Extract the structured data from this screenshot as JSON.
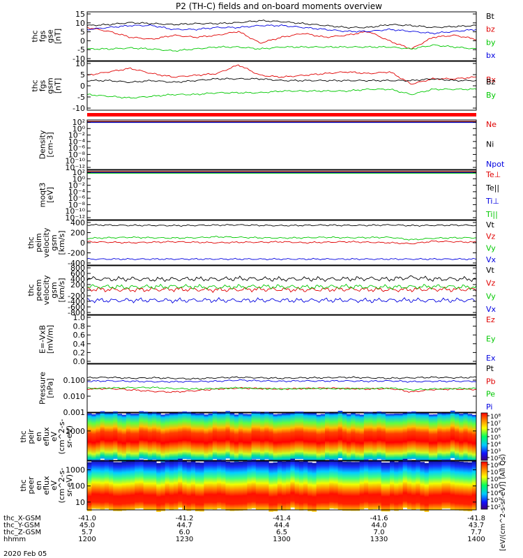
{
  "title": "P2 (TH-C) fields and on-board moments overview",
  "colors": {
    "black": "#000000",
    "red": "#e00000",
    "green": "#00c800",
    "blue": "#0000e0",
    "orange": "#ff9900"
  },
  "chart_data": [
    {
      "type": "line",
      "ylabel": [
        "thc",
        "fgs",
        "gse",
        "[nT]"
      ],
      "yticks": [
        "15",
        "10",
        "5",
        "0",
        "-5",
        "-10"
      ],
      "ylim": [
        -10,
        15
      ],
      "series": [
        {
          "name": "Bt",
          "color": "black",
          "values": [
            8,
            8.5,
            9.5,
            9,
            8.5,
            9,
            9,
            9.5,
            10.5,
            10,
            9,
            8,
            7,
            7,
            8.5,
            8,
            7,
            7.5,
            8
          ]
        },
        {
          "name": "bz",
          "color": "red",
          "values": [
            7,
            5,
            2,
            1,
            3,
            2,
            3,
            5,
            -1,
            2,
            4,
            2,
            3,
            5,
            0,
            -4,
            2,
            3,
            1
          ]
        },
        {
          "name": "by",
          "color": "green",
          "values": [
            -4,
            -4,
            -3.5,
            -4,
            -5,
            -4,
            -3,
            -3,
            -4,
            -3,
            -3,
            -3,
            -3,
            -3,
            -3,
            -4,
            -2,
            -3,
            -4
          ]
        },
        {
          "name": "bx",
          "color": "blue",
          "values": [
            6,
            7,
            8,
            8,
            6,
            6,
            7,
            7,
            8,
            8,
            7,
            6,
            5,
            5,
            6,
            5,
            4,
            5,
            6
          ]
        }
      ]
    },
    {
      "type": "line",
      "ylabel": [
        "thc",
        "fgs",
        "gsm",
        "[nT]"
      ],
      "yticks": [
        "10",
        "5",
        "0",
        "-5",
        "-10"
      ],
      "ylim": [
        -13,
        15
      ],
      "series": [
        {
          "name": "Bx",
          "color": "red",
          "values": [
            7,
            9,
            11,
            8,
            6,
            7,
            8,
            13,
            7,
            6,
            7,
            8,
            9,
            8,
            9,
            2,
            5,
            5,
            6
          ]
        },
        {
          "name": "Bz",
          "color": "black",
          "values": [
            4,
            4,
            3,
            4,
            3,
            4,
            5,
            5,
            5,
            4,
            4,
            4,
            4,
            4,
            4,
            4,
            5,
            4,
            4
          ]
        },
        {
          "name": "By",
          "color": "green",
          "values": [
            -4,
            -5,
            -6,
            -5,
            -4,
            -4,
            -3,
            -3,
            -3,
            -2,
            -2,
            -2,
            -2,
            -1,
            -1,
            -4,
            -1,
            -1,
            -1
          ]
        }
      ]
    },
    {
      "type": "line",
      "ylabel": [
        "Density",
        "[cm-3]"
      ],
      "yticks": [
        "10²",
        "10⁰",
        "10⁻²",
        "10⁻⁴",
        "10⁻⁶",
        "10⁻⁸",
        "10⁻¹⁰",
        "10⁻¹²"
      ],
      "series": [
        {
          "name": "Ne",
          "color": "red"
        },
        {
          "name": "Ni",
          "color": "black"
        },
        {
          "name": "Npot",
          "color": "blue"
        }
      ]
    },
    {
      "type": "line",
      "ylabel": [
        "moqt3",
        "[eV]"
      ],
      "yticks": [
        "10²",
        "10⁰",
        "10⁻²",
        "10⁻⁴",
        "10⁻⁶",
        "10⁻⁸",
        "10⁻¹⁰",
        "10⁻¹²"
      ],
      "series": [
        {
          "name": "Te⊥",
          "color": "red"
        },
        {
          "name": "Te||",
          "color": "black"
        },
        {
          "name": "Ti⊥",
          "color": "blue"
        },
        {
          "name": "Ti||",
          "color": "green"
        }
      ]
    },
    {
      "type": "line",
      "ylabel": [
        "thc",
        "peim",
        "velocity",
        "gsm",
        "[km/s]"
      ],
      "yticks": [
        "400",
        "200",
        "0",
        "-200",
        "-400"
      ],
      "ylim": [
        -450,
        450
      ],
      "series": [
        {
          "name": "Vt",
          "color": "black",
          "values": [
            360,
            355,
            350,
            350,
            345,
            350,
            355,
            360,
            350,
            345,
            350,
            355,
            350,
            350,
            360,
            345,
            350,
            355,
            350
          ]
        },
        {
          "name": "Vz",
          "color": "red",
          "values": [
            20,
            10,
            0,
            10,
            20,
            10,
            0,
            10,
            10,
            20,
            0,
            10,
            20,
            10,
            0,
            -20,
            30,
            20,
            10
          ]
        },
        {
          "name": "Vy",
          "color": "green",
          "values": [
            90,
            100,
            110,
            100,
            95,
            100,
            120,
            110,
            100,
            95,
            100,
            110,
            100,
            105,
            110,
            60,
            90,
            100,
            100
          ]
        },
        {
          "name": "Vx",
          "color": "blue",
          "values": [
            -330,
            -330,
            -330,
            -330,
            -330,
            -330,
            -330,
            -330,
            -330,
            -330,
            -330,
            -330,
            -330,
            -330,
            -330,
            -330,
            -330,
            -330,
            -330
          ]
        }
      ]
    },
    {
      "type": "line",
      "ylabel": [
        "thc",
        "peem",
        "velocity",
        "gsm",
        "[km/s]"
      ],
      "yticks": [
        "800",
        "600",
        "400",
        "200",
        "0",
        "-200",
        "-400",
        "-600",
        "-800"
      ],
      "ylim": [
        -800,
        800
      ],
      "series": [
        {
          "name": "Vt",
          "color": "black",
          "values": [
            380,
            360,
            370,
            350,
            360,
            370,
            360,
            380,
            370,
            360,
            370,
            360,
            370,
            380,
            360,
            420,
            360,
            370,
            360
          ]
        },
        {
          "name": "Vz",
          "color": "red",
          "values": [
            30,
            20,
            10,
            20,
            30,
            20,
            10,
            20,
            30,
            20,
            10,
            20,
            30,
            20,
            10,
            20,
            30,
            20,
            30
          ]
        },
        {
          "name": "Vy",
          "color": "green",
          "values": [
            120,
            110,
            100,
            110,
            120,
            110,
            100,
            110,
            120,
            110,
            100,
            110,
            120,
            110,
            100,
            110,
            120,
            110,
            100
          ]
        },
        {
          "name": "Vx",
          "color": "blue",
          "values": [
            -330,
            -340,
            -330,
            -330,
            -340,
            -330,
            -330,
            -340,
            -330,
            -330,
            -340,
            -330,
            -330,
            -340,
            -330,
            -330,
            -340,
            -330,
            -330
          ]
        }
      ]
    },
    {
      "type": "line",
      "ylabel": [
        "E=-VxB",
        "[mV/m]"
      ],
      "yticks": [
        "1.0",
        "0.8",
        "0.6",
        "0.4",
        "0.2",
        "0.0"
      ],
      "ylim": [
        0,
        1
      ],
      "series": [
        {
          "name": "Ez",
          "color": "red"
        },
        {
          "name": "Ey",
          "color": "green"
        },
        {
          "name": "Ex",
          "color": "blue"
        }
      ]
    },
    {
      "type": "line",
      "ylabel": [
        "Pressure",
        "[nPa]"
      ],
      "yticks": [
        "0.100",
        "0.010",
        "0.001"
      ],
      "ylim": [
        0.001,
        1
      ],
      "yscale": "log",
      "series": [
        {
          "name": "Pt",
          "color": "black",
          "values": [
            0.14,
            0.15,
            0.13,
            0.14,
            0.13,
            0.12,
            0.14,
            0.15,
            0.14,
            0.13,
            0.14,
            0.14,
            0.15,
            0.14,
            0.13,
            0.14,
            0.15,
            0.14,
            0.15
          ]
        },
        {
          "name": "Pb",
          "color": "red",
          "values": [
            0.028,
            0.03,
            0.025,
            0.02,
            0.018,
            0.022,
            0.028,
            0.032,
            0.03,
            0.028,
            0.03,
            0.032,
            0.03,
            0.028,
            0.03,
            0.018,
            0.026,
            0.028,
            0.026
          ]
        },
        {
          "name": "Pe",
          "color": "green",
          "values": [
            0.03,
            0.032,
            0.034,
            0.035,
            0.03,
            0.028,
            0.03,
            0.033,
            0.03,
            0.028,
            0.03,
            0.03,
            0.029,
            0.03,
            0.032,
            0.025,
            0.028,
            0.03,
            0.03
          ]
        },
        {
          "name": "Pi",
          "color": "blue",
          "values": [
            0.085,
            0.09,
            0.085,
            0.08,
            0.08,
            0.082,
            0.085,
            0.1,
            0.09,
            0.085,
            0.09,
            0.088,
            0.09,
            0.085,
            0.09,
            0.08,
            0.085,
            0.085,
            0.085
          ]
        }
      ]
    },
    {
      "type": "heatmap",
      "ylabel": [
        "thc",
        "peir",
        "en",
        "eflux",
        "eV",
        "(cm^2-s-",
        "sr-eV)"
      ],
      "yticks": [
        "1000"
      ]
    },
    {
      "type": "heatmap",
      "ylabel": [
        "thc",
        "peer",
        "en",
        "eflux",
        "eV",
        "(cm^2-s-",
        "sr-eV)"
      ],
      "yticks": [
        "1000",
        "100",
        "10"
      ]
    }
  ],
  "colorbar": {
    "label": "[eV/(cm^2-s-sr-eV)] (All Qs)",
    "ticks_top": [
      "10⁸",
      "10⁷",
      "10⁶",
      "10⁵",
      "10⁴",
      "10³",
      "10²"
    ],
    "ticks_bottom": [
      "10⁸",
      "10⁷",
      "10⁶",
      "10⁵",
      "10⁴",
      "10³",
      "10²"
    ]
  },
  "xaxis": {
    "rows": [
      {
        "label": "thc_X-GSM",
        "values": [
          "-41.0",
          "-41.2",
          "-41.4",
          "-41.6",
          "-41.8"
        ]
      },
      {
        "label": "thc_Y-GSM",
        "values": [
          "45.0",
          "44.7",
          "44.4",
          "44.0",
          "43.7"
        ]
      },
      {
        "label": "thc_Z-GSM",
        "values": [
          "5.7",
          "6.0",
          "6.5",
          "7.0",
          "7.7"
        ]
      },
      {
        "label": "hhmm",
        "values": [
          "1200",
          "1230",
          "1300",
          "1330",
          "1400"
        ]
      }
    ],
    "date": "2020 Feb 05"
  }
}
